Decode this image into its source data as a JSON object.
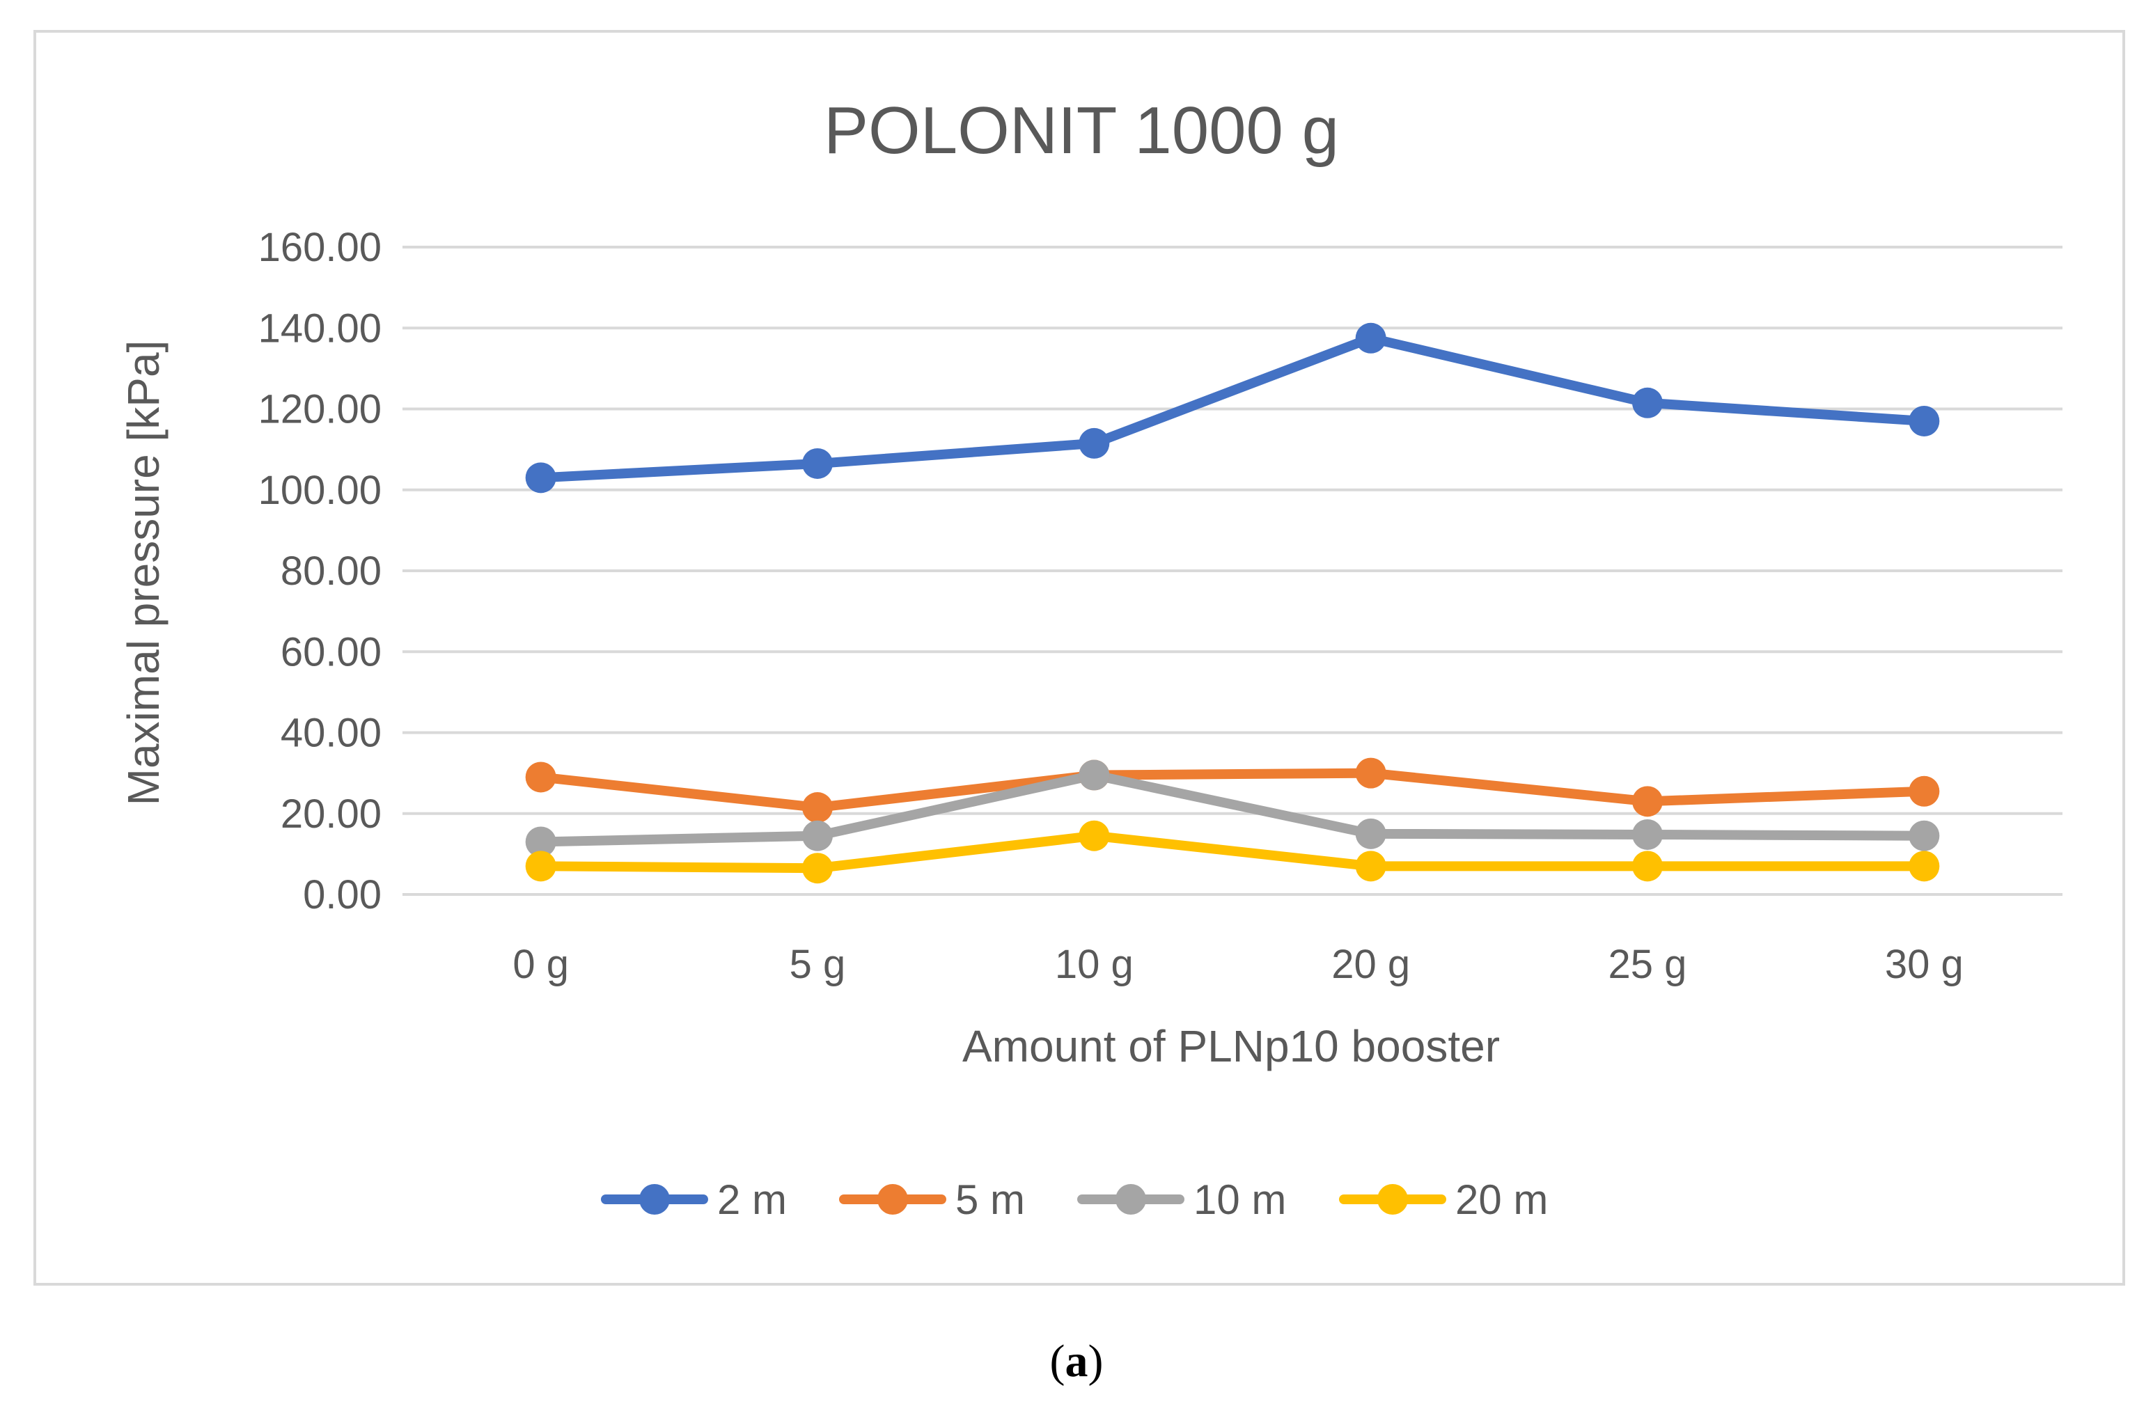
{
  "chart_data": {
    "type": "line",
    "title": "POLONIT 1000 g",
    "xlabel": "Amount of PLNp10 booster",
    "ylabel": "Maximal pressure [kPa]",
    "categories": [
      "0 g",
      "5 g",
      "10 g",
      "20 g",
      "25 g",
      "30 g"
    ],
    "ylim": [
      0,
      160
    ],
    "yticks": [
      "0.00",
      "20.00",
      "40.00",
      "60.00",
      "80.00",
      "100.00",
      "120.00",
      "140.00",
      "160.00"
    ],
    "grid": true,
    "legend_position": "bottom",
    "series": [
      {
        "name": "2 m",
        "color": "#4472C4",
        "values": [
          103.0,
          106.5,
          111.5,
          137.5,
          121.5,
          117.0
        ]
      },
      {
        "name": "5 m",
        "color": "#ED7D31",
        "values": [
          29.0,
          21.5,
          29.5,
          30.0,
          23.0,
          25.5
        ]
      },
      {
        "name": "10 m",
        "color": "#A5A5A5",
        "values": [
          13.0,
          14.5,
          29.5,
          15.0,
          14.8,
          14.5
        ]
      },
      {
        "name": "20 m",
        "color": "#FFC000",
        "values": [
          7.0,
          6.5,
          14.5,
          7.0,
          7.0,
          7.0
        ]
      }
    ]
  },
  "caption": {
    "label": "a"
  },
  "colors": {
    "gridline": "#D9D9D9",
    "border": "#D9D9D9",
    "text": "#595959"
  }
}
